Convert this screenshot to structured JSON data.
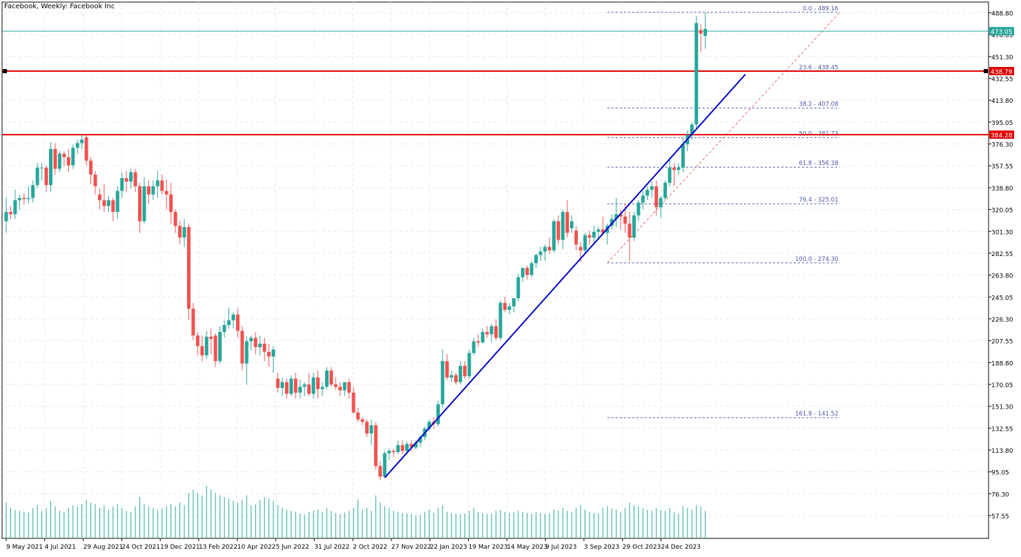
{
  "chart_title": "Facebook, Weekly:  Facebook Inc",
  "colors": {
    "bull": "#26a69a",
    "bear": "#ef5350",
    "grid": "#e8e8e8",
    "volume": "#26a69a",
    "trendline": "#0000cd",
    "fib": "#4a56a8",
    "hline": "#e00000",
    "current_price_line": "#26a69a"
  },
  "chart_data": {
    "type": "candlestick",
    "title": "Facebook, Weekly:  Facebook Inc",
    "ylim": [
      38,
      498
    ],
    "y_ticks": [
      "488.80",
      "470.05",
      "451.30",
      "432.55",
      "413.80",
      "395.05",
      "376.30",
      "357.55",
      "338.80",
      "320.05",
      "301.30",
      "282.55",
      "263.80",
      "245.05",
      "226.30",
      "207.55",
      "188.80",
      "170.05",
      "151.30",
      "132.55",
      "113.80",
      "95.05",
      "76.30",
      "57.55"
    ],
    "x_ticks": [
      "9 May 2021",
      "4 Jul 2021",
      "29 Aug 2021",
      "24 Oct 2021",
      "19 Dec 2021",
      "13 Feb 2022",
      "10 Apr 2022",
      "5 Jun 2022",
      "31 Jul 2022",
      "2 Oct 2022",
      "27 Nov 2022",
      "22 Jan 2023",
      "19 Mar 2023",
      "14 May 2023",
      "9 Jul 2023",
      "3 Sep 2023",
      "29 Oct 2023",
      "24 Dec 2023"
    ],
    "series": [
      {
        "o": 310,
        "h": 330,
        "l": 300,
        "c": 318,
        "v": 65
      },
      {
        "o": 318,
        "h": 323,
        "l": 312,
        "c": 316,
        "v": 55
      },
      {
        "o": 316,
        "h": 337,
        "l": 312,
        "c": 328,
        "v": 52
      },
      {
        "o": 328,
        "h": 333,
        "l": 320,
        "c": 330,
        "v": 50
      },
      {
        "o": 330,
        "h": 334,
        "l": 324,
        "c": 329,
        "v": 48
      },
      {
        "o": 329,
        "h": 340,
        "l": 325,
        "c": 330,
        "v": 47
      },
      {
        "o": 330,
        "h": 345,
        "l": 326,
        "c": 341,
        "v": 55
      },
      {
        "o": 341,
        "h": 360,
        "l": 338,
        "c": 356,
        "v": 60
      },
      {
        "o": 356,
        "h": 360,
        "l": 345,
        "c": 356,
        "v": 50
      },
      {
        "o": 356,
        "h": 358,
        "l": 335,
        "c": 341,
        "v": 55
      },
      {
        "o": 341,
        "h": 378,
        "l": 335,
        "c": 372,
        "v": 68
      },
      {
        "o": 372,
        "h": 377,
        "l": 350,
        "c": 355,
        "v": 58
      },
      {
        "o": 355,
        "h": 370,
        "l": 352,
        "c": 368,
        "v": 50
      },
      {
        "o": 368,
        "h": 370,
        "l": 357,
        "c": 365,
        "v": 48
      },
      {
        "o": 365,
        "h": 372,
        "l": 352,
        "c": 358,
        "v": 56
      },
      {
        "o": 358,
        "h": 376,
        "l": 355,
        "c": 373,
        "v": 60
      },
      {
        "o": 373,
        "h": 380,
        "l": 368,
        "c": 377,
        "v": 58
      },
      {
        "o": 377,
        "h": 384,
        "l": 372,
        "c": 380,
        "v": 62
      },
      {
        "o": 382,
        "h": 384,
        "l": 358,
        "c": 362,
        "v": 70
      },
      {
        "o": 362,
        "h": 365,
        "l": 342,
        "c": 350,
        "v": 65
      },
      {
        "o": 350,
        "h": 353,
        "l": 333,
        "c": 340,
        "v": 62
      },
      {
        "o": 333,
        "h": 338,
        "l": 320,
        "c": 328,
        "v": 55
      },
      {
        "o": 328,
        "h": 342,
        "l": 318,
        "c": 323,
        "v": 60
      },
      {
        "o": 323,
        "h": 332,
        "l": 318,
        "c": 328,
        "v": 52
      },
      {
        "o": 328,
        "h": 330,
        "l": 310,
        "c": 318,
        "v": 58
      },
      {
        "o": 318,
        "h": 340,
        "l": 312,
        "c": 336,
        "v": 62
      },
      {
        "o": 336,
        "h": 352,
        "l": 330,
        "c": 347,
        "v": 55
      },
      {
        "o": 347,
        "h": 353,
        "l": 335,
        "c": 344,
        "v": 50
      },
      {
        "o": 344,
        "h": 355,
        "l": 338,
        "c": 352,
        "v": 48
      },
      {
        "o": 352,
        "h": 355,
        "l": 335,
        "c": 340,
        "v": 58
      },
      {
        "o": 340,
        "h": 343,
        "l": 300,
        "c": 310,
        "v": 75
      },
      {
        "o": 310,
        "h": 348,
        "l": 308,
        "c": 340,
        "v": 62
      },
      {
        "o": 340,
        "h": 345,
        "l": 325,
        "c": 333,
        "v": 58
      },
      {
        "o": 333,
        "h": 345,
        "l": 328,
        "c": 340,
        "v": 55
      },
      {
        "o": 340,
        "h": 353,
        "l": 330,
        "c": 345,
        "v": 52
      },
      {
        "o": 345,
        "h": 350,
        "l": 333,
        "c": 336,
        "v": 55
      },
      {
        "o": 336,
        "h": 346,
        "l": 320,
        "c": 333,
        "v": 58
      },
      {
        "o": 333,
        "h": 343,
        "l": 308,
        "c": 318,
        "v": 62
      },
      {
        "o": 318,
        "h": 320,
        "l": 300,
        "c": 306,
        "v": 58
      },
      {
        "o": 306,
        "h": 310,
        "l": 290,
        "c": 296,
        "v": 65
      },
      {
        "o": 296,
        "h": 312,
        "l": 288,
        "c": 305,
        "v": 60
      },
      {
        "o": 305,
        "h": 308,
        "l": 225,
        "c": 235,
        "v": 82
      },
      {
        "o": 235,
        "h": 240,
        "l": 208,
        "c": 212,
        "v": 88
      },
      {
        "o": 212,
        "h": 215,
        "l": 195,
        "c": 203,
        "v": 82
      },
      {
        "o": 203,
        "h": 212,
        "l": 190,
        "c": 195,
        "v": 78
      },
      {
        "o": 195,
        "h": 216,
        "l": 192,
        "c": 211,
        "v": 95
      },
      {
        "o": 211,
        "h": 218,
        "l": 196,
        "c": 209,
        "v": 88
      },
      {
        "o": 212,
        "h": 214,
        "l": 185,
        "c": 190,
        "v": 82
      },
      {
        "o": 190,
        "h": 220,
        "l": 188,
        "c": 215,
        "v": 78
      },
      {
        "o": 215,
        "h": 225,
        "l": 210,
        "c": 221,
        "v": 75
      },
      {
        "o": 221,
        "h": 236,
        "l": 218,
        "c": 225,
        "v": 72
      },
      {
        "o": 225,
        "h": 232,
        "l": 218,
        "c": 230,
        "v": 68
      },
      {
        "o": 230,
        "h": 235,
        "l": 210,
        "c": 216,
        "v": 65
      },
      {
        "o": 216,
        "h": 220,
        "l": 182,
        "c": 188,
        "v": 70
      },
      {
        "o": 188,
        "h": 211,
        "l": 170,
        "c": 207,
        "v": 78
      },
      {
        "o": 207,
        "h": 212,
        "l": 199,
        "c": 210,
        "v": 60
      },
      {
        "o": 210,
        "h": 215,
        "l": 196,
        "c": 202,
        "v": 62
      },
      {
        "o": 202,
        "h": 212,
        "l": 195,
        "c": 205,
        "v": 70
      },
      {
        "o": 205,
        "h": 210,
        "l": 190,
        "c": 198,
        "v": 75
      },
      {
        "o": 198,
        "h": 205,
        "l": 185,
        "c": 194,
        "v": 72
      },
      {
        "o": 194,
        "h": 203,
        "l": 180,
        "c": 200,
        "v": 68
      },
      {
        "o": 175,
        "h": 180,
        "l": 163,
        "c": 167,
        "v": 60
      },
      {
        "o": 167,
        "h": 176,
        "l": 160,
        "c": 172,
        "v": 55
      },
      {
        "o": 172,
        "h": 175,
        "l": 158,
        "c": 162,
        "v": 52
      },
      {
        "o": 162,
        "h": 178,
        "l": 160,
        "c": 175,
        "v": 50
      },
      {
        "o": 175,
        "h": 180,
        "l": 158,
        "c": 163,
        "v": 48
      },
      {
        "o": 163,
        "h": 174,
        "l": 158,
        "c": 168,
        "v": 45
      },
      {
        "o": 168,
        "h": 172,
        "l": 160,
        "c": 170,
        "v": 43
      },
      {
        "o": 170,
        "h": 180,
        "l": 160,
        "c": 162,
        "v": 48
      },
      {
        "o": 162,
        "h": 180,
        "l": 158,
        "c": 176,
        "v": 50
      },
      {
        "o": 176,
        "h": 182,
        "l": 158,
        "c": 166,
        "v": 52
      },
      {
        "o": 166,
        "h": 172,
        "l": 160,
        "c": 168,
        "v": 48
      },
      {
        "o": 168,
        "h": 185,
        "l": 166,
        "c": 182,
        "v": 55
      },
      {
        "o": 182,
        "h": 185,
        "l": 168,
        "c": 170,
        "v": 50
      },
      {
        "o": 170,
        "h": 176,
        "l": 165,
        "c": 168,
        "v": 46
      },
      {
        "o": 168,
        "h": 172,
        "l": 160,
        "c": 165,
        "v": 44
      },
      {
        "o": 165,
        "h": 172,
        "l": 160,
        "c": 172,
        "v": 47
      },
      {
        "o": 172,
        "h": 175,
        "l": 158,
        "c": 163,
        "v": 50
      },
      {
        "o": 163,
        "h": 168,
        "l": 145,
        "c": 146,
        "v": 55
      },
      {
        "o": 146,
        "h": 150,
        "l": 138,
        "c": 140,
        "v": 70
      },
      {
        "o": 140,
        "h": 142,
        "l": 135,
        "c": 138,
        "v": 52
      },
      {
        "o": 138,
        "h": 140,
        "l": 125,
        "c": 128,
        "v": 55
      },
      {
        "o": 128,
        "h": 140,
        "l": 118,
        "c": 135,
        "v": 50
      },
      {
        "o": 135,
        "h": 138,
        "l": 97,
        "c": 100,
        "v": 78
      },
      {
        "o": 100,
        "h": 104,
        "l": 88,
        "c": 91,
        "v": 65
      },
      {
        "o": 91,
        "h": 113,
        "l": 90,
        "c": 111,
        "v": 58
      },
      {
        "o": 111,
        "h": 115,
        "l": 105,
        "c": 113,
        "v": 55
      },
      {
        "o": 113,
        "h": 115,
        "l": 108,
        "c": 112,
        "v": 50
      },
      {
        "o": 112,
        "h": 122,
        "l": 110,
        "c": 118,
        "v": 48
      },
      {
        "o": 118,
        "h": 122,
        "l": 110,
        "c": 113,
        "v": 46
      },
      {
        "o": 113,
        "h": 121,
        "l": 110,
        "c": 119,
        "v": 45
      },
      {
        "o": 119,
        "h": 122,
        "l": 113,
        "c": 116,
        "v": 44
      },
      {
        "o": 116,
        "h": 122,
        "l": 114,
        "c": 120,
        "v": 42
      },
      {
        "o": 120,
        "h": 126,
        "l": 116,
        "c": 125,
        "v": 43
      },
      {
        "o": 125,
        "h": 134,
        "l": 122,
        "c": 132,
        "v": 48
      },
      {
        "o": 132,
        "h": 140,
        "l": 130,
        "c": 138,
        "v": 52
      },
      {
        "o": 138,
        "h": 142,
        "l": 132,
        "c": 136,
        "v": 46
      },
      {
        "o": 136,
        "h": 156,
        "l": 134,
        "c": 153,
        "v": 55
      },
      {
        "o": 153,
        "h": 200,
        "l": 150,
        "c": 190,
        "v": 60
      },
      {
        "o": 190,
        "h": 196,
        "l": 174,
        "c": 176,
        "v": 48
      },
      {
        "o": 176,
        "h": 182,
        "l": 172,
        "c": 178,
        "v": 46
      },
      {
        "o": 178,
        "h": 180,
        "l": 170,
        "c": 172,
        "v": 45
      },
      {
        "o": 172,
        "h": 190,
        "l": 170,
        "c": 186,
        "v": 44
      },
      {
        "o": 186,
        "h": 190,
        "l": 175,
        "c": 177,
        "v": 45
      },
      {
        "o": 177,
        "h": 200,
        "l": 175,
        "c": 197,
        "v": 50
      },
      {
        "o": 197,
        "h": 210,
        "l": 195,
        "c": 207,
        "v": 55
      },
      {
        "o": 207,
        "h": 213,
        "l": 202,
        "c": 206,
        "v": 48
      },
      {
        "o": 206,
        "h": 218,
        "l": 205,
        "c": 215,
        "v": 46
      },
      {
        "o": 215,
        "h": 220,
        "l": 210,
        "c": 213,
        "v": 44
      },
      {
        "o": 213,
        "h": 222,
        "l": 206,
        "c": 220,
        "v": 45
      },
      {
        "o": 220,
        "h": 226,
        "l": 208,
        "c": 210,
        "v": 50
      },
      {
        "o": 210,
        "h": 242,
        "l": 208,
        "c": 240,
        "v": 52
      },
      {
        "o": 240,
        "h": 245,
        "l": 232,
        "c": 234,
        "v": 48
      },
      {
        "o": 234,
        "h": 240,
        "l": 230,
        "c": 237,
        "v": 46
      },
      {
        "o": 237,
        "h": 243,
        "l": 232,
        "c": 244,
        "v": 47
      },
      {
        "o": 244,
        "h": 265,
        "l": 241,
        "c": 262,
        "v": 50
      },
      {
        "o": 262,
        "h": 270,
        "l": 258,
        "c": 270,
        "v": 48
      },
      {
        "o": 270,
        "h": 272,
        "l": 260,
        "c": 264,
        "v": 46
      },
      {
        "o": 264,
        "h": 276,
        "l": 262,
        "c": 274,
        "v": 45
      },
      {
        "o": 274,
        "h": 282,
        "l": 270,
        "c": 281,
        "v": 48
      },
      {
        "o": 281,
        "h": 288,
        "l": 276,
        "c": 284,
        "v": 46
      },
      {
        "o": 284,
        "h": 290,
        "l": 276,
        "c": 288,
        "v": 44
      },
      {
        "o": 288,
        "h": 296,
        "l": 282,
        "c": 285,
        "v": 45
      },
      {
        "o": 285,
        "h": 312,
        "l": 283,
        "c": 310,
        "v": 52
      },
      {
        "o": 310,
        "h": 315,
        "l": 290,
        "c": 294,
        "v": 50
      },
      {
        "o": 294,
        "h": 320,
        "l": 286,
        "c": 318,
        "v": 55
      },
      {
        "o": 318,
        "h": 328,
        "l": 296,
        "c": 300,
        "v": 50
      },
      {
        "o": 304,
        "h": 315,
        "l": 300,
        "c": 310,
        "v": 48
      },
      {
        "o": 302,
        "h": 306,
        "l": 285,
        "c": 290,
        "v": 55
      },
      {
        "o": 288,
        "h": 292,
        "l": 275,
        "c": 285,
        "v": 60
      },
      {
        "o": 285,
        "h": 300,
        "l": 282,
        "c": 298,
        "v": 52
      },
      {
        "o": 298,
        "h": 302,
        "l": 290,
        "c": 296,
        "v": 48
      },
      {
        "o": 296,
        "h": 306,
        "l": 292,
        "c": 301,
        "v": 46
      },
      {
        "o": 301,
        "h": 305,
        "l": 296,
        "c": 303,
        "v": 45
      },
      {
        "o": 303,
        "h": 314,
        "l": 298,
        "c": 300,
        "v": 55
      },
      {
        "o": 300,
        "h": 308,
        "l": 290,
        "c": 306,
        "v": 58
      },
      {
        "o": 306,
        "h": 316,
        "l": 303,
        "c": 312,
        "v": 54
      },
      {
        "o": 312,
        "h": 330,
        "l": 305,
        "c": 316,
        "v": 52
      },
      {
        "o": 316,
        "h": 320,
        "l": 303,
        "c": 314,
        "v": 48
      },
      {
        "o": 314,
        "h": 325,
        "l": 300,
        "c": 308,
        "v": 55
      },
      {
        "o": 308,
        "h": 318,
        "l": 276,
        "c": 296,
        "v": 65
      },
      {
        "o": 296,
        "h": 318,
        "l": 293,
        "c": 315,
        "v": 60
      },
      {
        "o": 315,
        "h": 328,
        "l": 310,
        "c": 326,
        "v": 58
      },
      {
        "o": 326,
        "h": 336,
        "l": 320,
        "c": 332,
        "v": 55
      },
      {
        "o": 332,
        "h": 340,
        "l": 328,
        "c": 337,
        "v": 52
      },
      {
        "o": 337,
        "h": 344,
        "l": 330,
        "c": 340,
        "v": 50
      },
      {
        "o": 340,
        "h": 345,
        "l": 315,
        "c": 322,
        "v": 55
      },
      {
        "o": 322,
        "h": 332,
        "l": 313,
        "c": 330,
        "v": 52
      },
      {
        "o": 330,
        "h": 345,
        "l": 328,
        "c": 343,
        "v": 50
      },
      {
        "o": 343,
        "h": 365,
        "l": 340,
        "c": 356,
        "v": 55
      },
      {
        "o": 356,
        "h": 360,
        "l": 340,
        "c": 354,
        "v": 48
      },
      {
        "o": 354,
        "h": 360,
        "l": 350,
        "c": 356,
        "v": 45
      },
      {
        "o": 356,
        "h": 382,
        "l": 352,
        "c": 376,
        "v": 58
      },
      {
        "o": 376,
        "h": 388,
        "l": 370,
        "c": 384,
        "v": 55
      },
      {
        "o": 384,
        "h": 395,
        "l": 380,
        "c": 393,
        "v": 52
      },
      {
        "o": 393,
        "h": 486,
        "l": 390,
        "c": 480,
        "v": 60
      },
      {
        "o": 474,
        "h": 479,
        "l": 455,
        "c": 471,
        "v": 58
      },
      {
        "o": 469,
        "h": 489,
        "l": 458,
        "c": 475,
        "v": 50
      }
    ],
    "fib_levels": [
      {
        "label": "0.0 - 489.16",
        "value": 489.16
      },
      {
        "label": "23.6 - 438.45",
        "value": 438.45
      },
      {
        "label": "38.2 - 407.08",
        "value": 407.08
      },
      {
        "label": "50.0 - 381.73",
        "value": 381.73
      },
      {
        "label": "61.8 - 356.38",
        "value": 356.38
      },
      {
        "label": "76.4 - 325.01",
        "value": 325.01
      },
      {
        "label": "100.0 - 274.30",
        "value": 274.3
      },
      {
        "label": "161.8 - 141.52",
        "value": 141.52
      }
    ],
    "horizontal_lines": [
      {
        "value": 438.79,
        "label": "438.79"
      },
      {
        "value": 384.28,
        "label": "384.28"
      }
    ],
    "current_price": {
      "value": 473.05,
      "label": "473.05"
    },
    "trendline": {
      "from_bar": 85,
      "from_value": 90,
      "to_bar": 166,
      "to_value": 436
    },
    "fib_anchor": {
      "from_bar": 135,
      "from_value": 274.3,
      "to_bar": 181,
      "to_value": 489.16
    }
  }
}
